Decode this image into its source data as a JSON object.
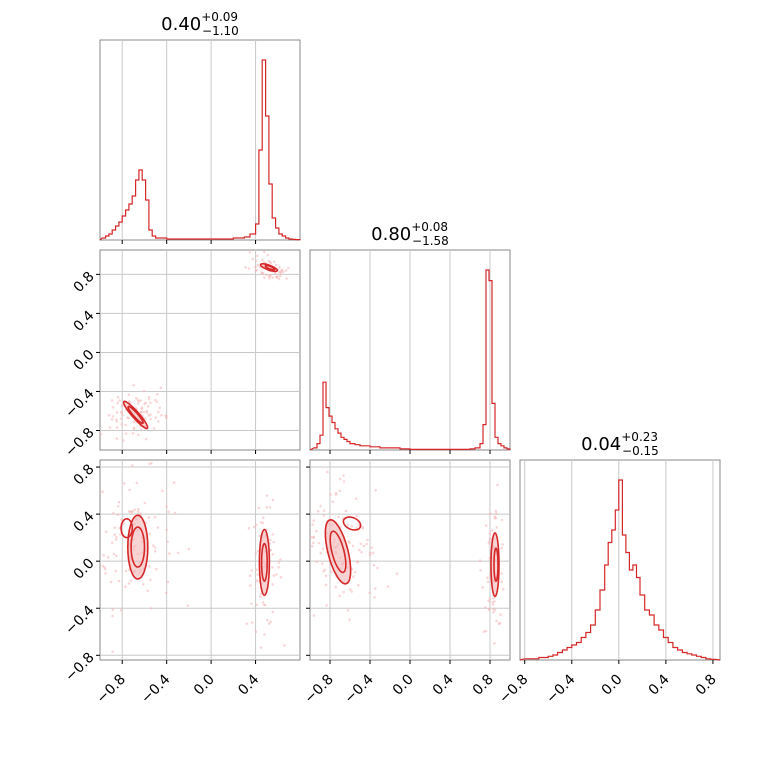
{
  "colors": {
    "line": "#d62728",
    "fill": "#f4b6b8",
    "grid": "#c8c8c8",
    "frame": "#888888",
    "text": "#000000"
  },
  "chart_data": [
    {
      "type": "histogram",
      "panel": "p1",
      "title_value": "0.40",
      "title_sup": "+0.09",
      "title_sub": "−1.10",
      "xlim": [
        -1.0,
        0.8
      ],
      "x_ticks": [
        -0.8,
        -0.4,
        0.0,
        0.4
      ],
      "grid": true,
      "edges": [
        -0.98,
        -0.95,
        -0.92,
        -0.89,
        -0.86,
        -0.83,
        -0.8,
        -0.77,
        -0.74,
        -0.71,
        -0.68,
        -0.65,
        -0.62,
        -0.59,
        -0.56,
        -0.53,
        -0.5,
        -0.4,
        -0.3,
        -0.2,
        -0.1,
        0.0,
        0.1,
        0.2,
        0.3,
        0.35,
        0.4,
        0.43,
        0.46,
        0.49,
        0.52,
        0.55,
        0.58,
        0.61,
        0.64,
        0.67,
        0.7,
        0.73,
        0.76,
        0.8
      ],
      "counts": [
        1,
        2,
        3,
        5,
        7,
        9,
        12,
        15,
        18,
        22,
        30,
        35,
        30,
        20,
        5,
        2,
        1,
        0.5,
        0.5,
        0.5,
        0.5,
        0.5,
        0.5,
        1,
        1.5,
        3,
        8,
        45,
        90,
        62,
        28,
        11,
        6,
        3,
        2,
        1,
        0.5,
        0.3,
        0.2
      ]
    },
    {
      "type": "scatter-contour",
      "panel": "p2",
      "xlim": [
        -1.0,
        0.8
      ],
      "ylim": [
        -1.0,
        1.05
      ],
      "x_ticks": [
        -0.8,
        -0.4,
        0.0,
        0.4
      ],
      "y_ticks": [
        -0.8,
        -0.4,
        0.0,
        0.4,
        0.8
      ],
      "y_tick_labels": [
        "−0.8",
        "−0.4",
        "0.0",
        "0.4",
        "0.8"
      ],
      "grid": true,
      "clusters": [
        {
          "cx": -0.68,
          "cy": -0.64,
          "sx": 0.06,
          "sy": 0.07,
          "tilt": -0.9,
          "n": 90
        },
        {
          "cx": 0.52,
          "cy": 0.86,
          "sx": 0.05,
          "sy": 0.03,
          "tilt": -0.5,
          "n": 60
        }
      ],
      "contours": [
        {
          "cx": -0.68,
          "cy": -0.64,
          "rx": 0.16,
          "ry": 0.035,
          "angle": -0.85,
          "filled": true
        },
        {
          "cx": -0.68,
          "cy": -0.64,
          "rx": 0.1,
          "ry": 0.022,
          "angle": -0.85,
          "filled": false
        },
        {
          "cx": 0.52,
          "cy": 0.87,
          "rx": 0.08,
          "ry": 0.025,
          "angle": -0.35,
          "filled": true
        },
        {
          "cx": 0.53,
          "cy": 0.87,
          "rx": 0.045,
          "ry": 0.013,
          "angle": -0.35,
          "filled": false
        }
      ]
    },
    {
      "type": "histogram",
      "panel": "p3",
      "title_value": "0.80",
      "title_sup": "+0.08",
      "title_sub": "−1.58",
      "xlim": [
        -1.0,
        1.0
      ],
      "x_ticks": [
        -0.8,
        -0.4,
        0.0,
        0.4,
        0.8
      ],
      "grid": true,
      "edges": [
        -0.96,
        -0.93,
        -0.9,
        -0.87,
        -0.84,
        -0.81,
        -0.78,
        -0.75,
        -0.72,
        -0.69,
        -0.66,
        -0.63,
        -0.6,
        -0.55,
        -0.5,
        -0.4,
        -0.3,
        -0.2,
        -0.1,
        0.0,
        0.1,
        0.2,
        0.3,
        0.4,
        0.5,
        0.6,
        0.65,
        0.7,
        0.73,
        0.76,
        0.79,
        0.82,
        0.85,
        0.88,
        0.91,
        0.94,
        0.97,
        1.0
      ],
      "counts": [
        1,
        3,
        7,
        32,
        20,
        16,
        13,
        10,
        8,
        6,
        5,
        4,
        3,
        2.5,
        2,
        1.5,
        1,
        1,
        0.5,
        0.3,
        0.3,
        0.3,
        0.3,
        0.3,
        0.3,
        0.5,
        1,
        3,
        12,
        85,
        80,
        22,
        6,
        3,
        2,
        1,
        0.5
      ]
    },
    {
      "type": "scatter-contour",
      "panel": "p4",
      "xlim": [
        -1.0,
        0.8
      ],
      "ylim": [
        -0.84,
        0.86
      ],
      "x_ticks": [
        -0.8,
        -0.4,
        0.0,
        0.4
      ],
      "x_tick_labels": [
        "−0.8",
        "−0.4",
        "0.0",
        "0.4"
      ],
      "y_ticks": [
        -0.8,
        -0.4,
        0.0,
        0.4,
        0.8
      ],
      "y_tick_labels": [
        "−0.8",
        "−0.4",
        "0.0",
        "0.4",
        "0.8"
      ],
      "grid": true,
      "clusters": [
        {
          "cx": -0.7,
          "cy": 0.18,
          "sx": 0.09,
          "sy": 0.14,
          "tilt": 0,
          "n": 120
        },
        {
          "cx": 0.48,
          "cy": -0.05,
          "sx": 0.04,
          "sy": 0.13,
          "tilt": 0,
          "n": 70
        }
      ],
      "contours": [
        {
          "cx": -0.66,
          "cy": 0.12,
          "rx": 0.09,
          "ry": 0.27,
          "angle": 0,
          "filled": true
        },
        {
          "cx": -0.66,
          "cy": 0.12,
          "rx": 0.06,
          "ry": 0.17,
          "angle": 0,
          "filled": false
        },
        {
          "cx": -0.76,
          "cy": 0.28,
          "rx": 0.05,
          "ry": 0.08,
          "angle": 0,
          "filled": false
        },
        {
          "cx": 0.48,
          "cy": -0.01,
          "rx": 0.045,
          "ry": 0.28,
          "angle": 0,
          "filled": true
        },
        {
          "cx": 0.48,
          "cy": -0.01,
          "rx": 0.025,
          "ry": 0.16,
          "angle": 0,
          "filled": false
        }
      ]
    },
    {
      "type": "scatter-contour",
      "panel": "p5",
      "xlim": [
        -1.0,
        1.0
      ],
      "ylim": [
        -0.84,
        0.86
      ],
      "x_ticks": [
        -0.8,
        -0.4,
        0.0,
        0.4,
        0.8
      ],
      "x_tick_labels": [
        "−0.8",
        "−0.4",
        "0.0",
        "0.4",
        "0.8"
      ],
      "y_ticks": [
        -0.8,
        -0.4,
        0.0,
        0.4,
        0.8
      ],
      "grid": true,
      "clusters": [
        {
          "cx": -0.7,
          "cy": 0.1,
          "sx": 0.12,
          "sy": 0.16,
          "tilt": 0.6,
          "n": 130
        },
        {
          "cx": 0.84,
          "cy": -0.02,
          "sx": 0.03,
          "sy": 0.14,
          "tilt": 0,
          "n": 60
        }
      ],
      "contours": [
        {
          "cx": -0.72,
          "cy": 0.08,
          "rx": 0.1,
          "ry": 0.28,
          "angle": 0.25,
          "filled": true
        },
        {
          "cx": -0.72,
          "cy": 0.08,
          "rx": 0.06,
          "ry": 0.18,
          "angle": 0.25,
          "filled": false
        },
        {
          "cx": -0.58,
          "cy": 0.32,
          "rx": 0.09,
          "ry": 0.05,
          "angle": -0.4,
          "filled": false
        },
        {
          "cx": 0.85,
          "cy": -0.03,
          "rx": 0.04,
          "ry": 0.27,
          "angle": 0,
          "filled": true
        },
        {
          "cx": 0.86,
          "cy": -0.03,
          "rx": 0.02,
          "ry": 0.14,
          "angle": 0,
          "filled": false
        }
      ]
    },
    {
      "type": "histogram",
      "panel": "p6",
      "title_value": "0.04",
      "title_sup": "+0.23",
      "title_sub": "−0.15",
      "xlim": [
        -0.84,
        0.86
      ],
      "x_ticks": [
        -0.8,
        -0.4,
        0.0,
        0.4,
        0.8
      ],
      "x_tick_labels": [
        "−0.8",
        "−0.4",
        "0.0",
        "0.4",
        "0.8"
      ],
      "grid": true,
      "edges": [
        -0.8,
        -0.76,
        -0.72,
        -0.68,
        -0.64,
        -0.6,
        -0.56,
        -0.52,
        -0.48,
        -0.44,
        -0.4,
        -0.36,
        -0.32,
        -0.28,
        -0.24,
        -0.2,
        -0.16,
        -0.12,
        -0.09,
        -0.06,
        -0.03,
        0.0,
        0.03,
        0.06,
        0.09,
        0.12,
        0.15,
        0.18,
        0.22,
        0.26,
        0.3,
        0.34,
        0.38,
        0.42,
        0.46,
        0.5,
        0.54,
        0.58,
        0.62,
        0.66,
        0.7,
        0.74,
        0.78,
        0.82
      ],
      "counts": [
        0.5,
        0.5,
        0.5,
        1,
        1,
        1.5,
        2,
        3,
        4,
        5,
        6,
        7,
        9,
        11,
        14,
        20,
        28,
        38,
        47,
        52,
        60,
        72,
        50,
        43,
        36,
        38,
        33,
        26,
        20,
        18,
        14,
        12,
        9,
        7,
        5,
        4,
        3,
        2.5,
        2,
        1.5,
        1,
        0.5,
        0.3
      ]
    }
  ]
}
